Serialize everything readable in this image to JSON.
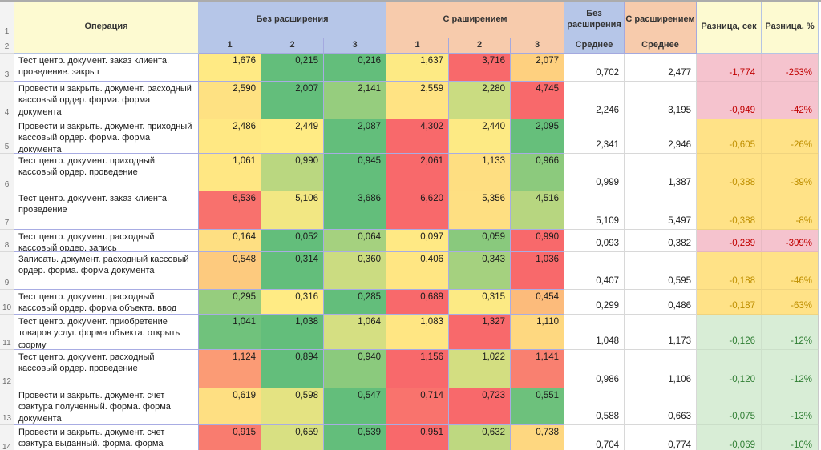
{
  "header": {
    "row_numbers": [
      "1",
      "2"
    ],
    "operation": "Операция",
    "group_no_ext": "Без расширения",
    "group_ext": "С раширением",
    "run_labels": [
      "1",
      "2",
      "3"
    ],
    "avg_no_ext_title": "Без расширения",
    "avg_ext_title": "С расширением",
    "avg_label": "Среднее",
    "diff_sec": "Разница, сек",
    "diff_pct": "Разница, %"
  },
  "colors": {
    "scale_min_green": "#63BE7B",
    "scale_mid_yellow": "#FFEB84",
    "scale_max_red": "#F8696B",
    "header_yellow": "#FDFAD1",
    "header_blue": "#B6C6E8",
    "header_orange": "#F7CBAC",
    "diff": {
      "red": {
        "bg": "#F5C3CE",
        "text": "#C00000"
      },
      "yellow": {
        "bg": "#FFE287",
        "text": "#BF8F00"
      },
      "green": {
        "bg": "#D8EDD6",
        "text": "#2E7D32"
      }
    }
  },
  "rows": [
    {
      "num": "3",
      "operation": "Тест центр. документ. заказ клиента. проведение. закрыт",
      "runs_no_ext": [
        "1,676",
        "0,215",
        "0,216"
      ],
      "runs_ext": [
        "1,637",
        "3,716",
        "2,077"
      ],
      "avg_no_ext": "0,702",
      "avg_ext": "2,477",
      "diff_sec": "-1,774",
      "diff_pct": "-253%",
      "severity": "red"
    },
    {
      "num": "4",
      "operation": "Провести и закрыть. документ. расходный кассовый ордер. форма. форма документа",
      "runs_no_ext": [
        "2,590",
        "2,007",
        "2,141"
      ],
      "runs_ext": [
        "2,559",
        "2,280",
        "4,745"
      ],
      "avg_no_ext": "2,246",
      "avg_ext": "3,195",
      "diff_sec": "-0,949",
      "diff_pct": "-42%",
      "severity": "red"
    },
    {
      "num": "5",
      "operation": "Провести и закрыть. документ. приходный кассовый ордер. форма. форма документа",
      "runs_no_ext": [
        "2,486",
        "2,449",
        "2,087"
      ],
      "runs_ext": [
        "4,302",
        "2,440",
        "2,095"
      ],
      "avg_no_ext": "2,341",
      "avg_ext": "2,946",
      "diff_sec": "-0,605",
      "diff_pct": "-26%",
      "severity": "yellow"
    },
    {
      "num": "6",
      "operation": "Тест центр. документ. приходный кассовый ордер. проведение",
      "runs_no_ext": [
        "1,061",
        "0,990",
        "0,945"
      ],
      "runs_ext": [
        "2,061",
        "1,133",
        "0,966"
      ],
      "avg_no_ext": "0,999",
      "avg_ext": "1,387",
      "diff_sec": "-0,388",
      "diff_pct": "-39%",
      "severity": "yellow"
    },
    {
      "num": "7",
      "operation": "Тест центр. документ. заказ клиента. проведение",
      "runs_no_ext": [
        "6,536",
        "5,106",
        "3,686"
      ],
      "runs_ext": [
        "6,620",
        "5,356",
        "4,516"
      ],
      "avg_no_ext": "5,109",
      "avg_ext": "5,497",
      "diff_sec": "-0,388",
      "diff_pct": "-8%",
      "severity": "yellow"
    },
    {
      "num": "8",
      "operation": "Тест центр. документ. расходный кассовый ордер. запись",
      "runs_no_ext": [
        "0,164",
        "0,052",
        "0,064"
      ],
      "runs_ext": [
        "0,097",
        "0,059",
        "0,990"
      ],
      "avg_no_ext": "0,093",
      "avg_ext": "0,382",
      "diff_sec": "-0,289",
      "diff_pct": "-309%",
      "severity": "red"
    },
    {
      "num": "9",
      "operation": "Записать. документ. расходный кассовый ордер. форма. форма документа",
      "runs_no_ext": [
        "0,548",
        "0,314",
        "0,360"
      ],
      "runs_ext": [
        "0,406",
        "0,343",
        "1,036"
      ],
      "avg_no_ext": "0,407",
      "avg_ext": "0,595",
      "diff_sec": "-0,188",
      "diff_pct": "-46%",
      "severity": "yellow"
    },
    {
      "num": "10",
      "operation": "Тест центр. документ. расходный кассовый ордер. форма объекта. ввод нового",
      "runs_no_ext": [
        "0,295",
        "0,316",
        "0,285"
      ],
      "runs_ext": [
        "0,689",
        "0,315",
        "0,454"
      ],
      "avg_no_ext": "0,299",
      "avg_ext": "0,486",
      "diff_sec": "-0,187",
      "diff_pct": "-63%",
      "severity": "yellow"
    },
    {
      "num": "11",
      "operation": "Тест центр. документ. приобретение товаров услуг. форма объекта. открыть форму",
      "runs_no_ext": [
        "1,041",
        "1,038",
        "1,064"
      ],
      "runs_ext": [
        "1,083",
        "1,327",
        "1,110"
      ],
      "avg_no_ext": "1,048",
      "avg_ext": "1,173",
      "diff_sec": "-0,126",
      "diff_pct": "-12%",
      "severity": "green"
    },
    {
      "num": "12",
      "operation": "Тест центр. документ. расходный кассовый ордер. проведение",
      "runs_no_ext": [
        "1,124",
        "0,894",
        "0,940"
      ],
      "runs_ext": [
        "1,156",
        "1,022",
        "1,141"
      ],
      "avg_no_ext": "0,986",
      "avg_ext": "1,106",
      "diff_sec": "-0,120",
      "diff_pct": "-12%",
      "severity": "green"
    },
    {
      "num": "13",
      "operation": "Провести и закрыть. документ. счет фактура полученный. форма. форма документа",
      "runs_no_ext": [
        "0,619",
        "0,598",
        "0,547"
      ],
      "runs_ext": [
        "0,714",
        "0,723",
        "0,551"
      ],
      "avg_no_ext": "0,588",
      "avg_ext": "0,663",
      "diff_sec": "-0,075",
      "diff_pct": "-13%",
      "severity": "green"
    },
    {
      "num": "14",
      "operation": "Провести и закрыть. документ. счет фактура выданный. форма. форма",
      "runs_no_ext": [
        "0,915",
        "0,659",
        "0,539"
      ],
      "runs_ext": [
        "0,951",
        "0,632",
        "0,738"
      ],
      "avg_no_ext": "0,704",
      "avg_ext": "0,774",
      "diff_sec": "-0,069",
      "diff_pct": "-10%",
      "severity": "green"
    }
  ]
}
